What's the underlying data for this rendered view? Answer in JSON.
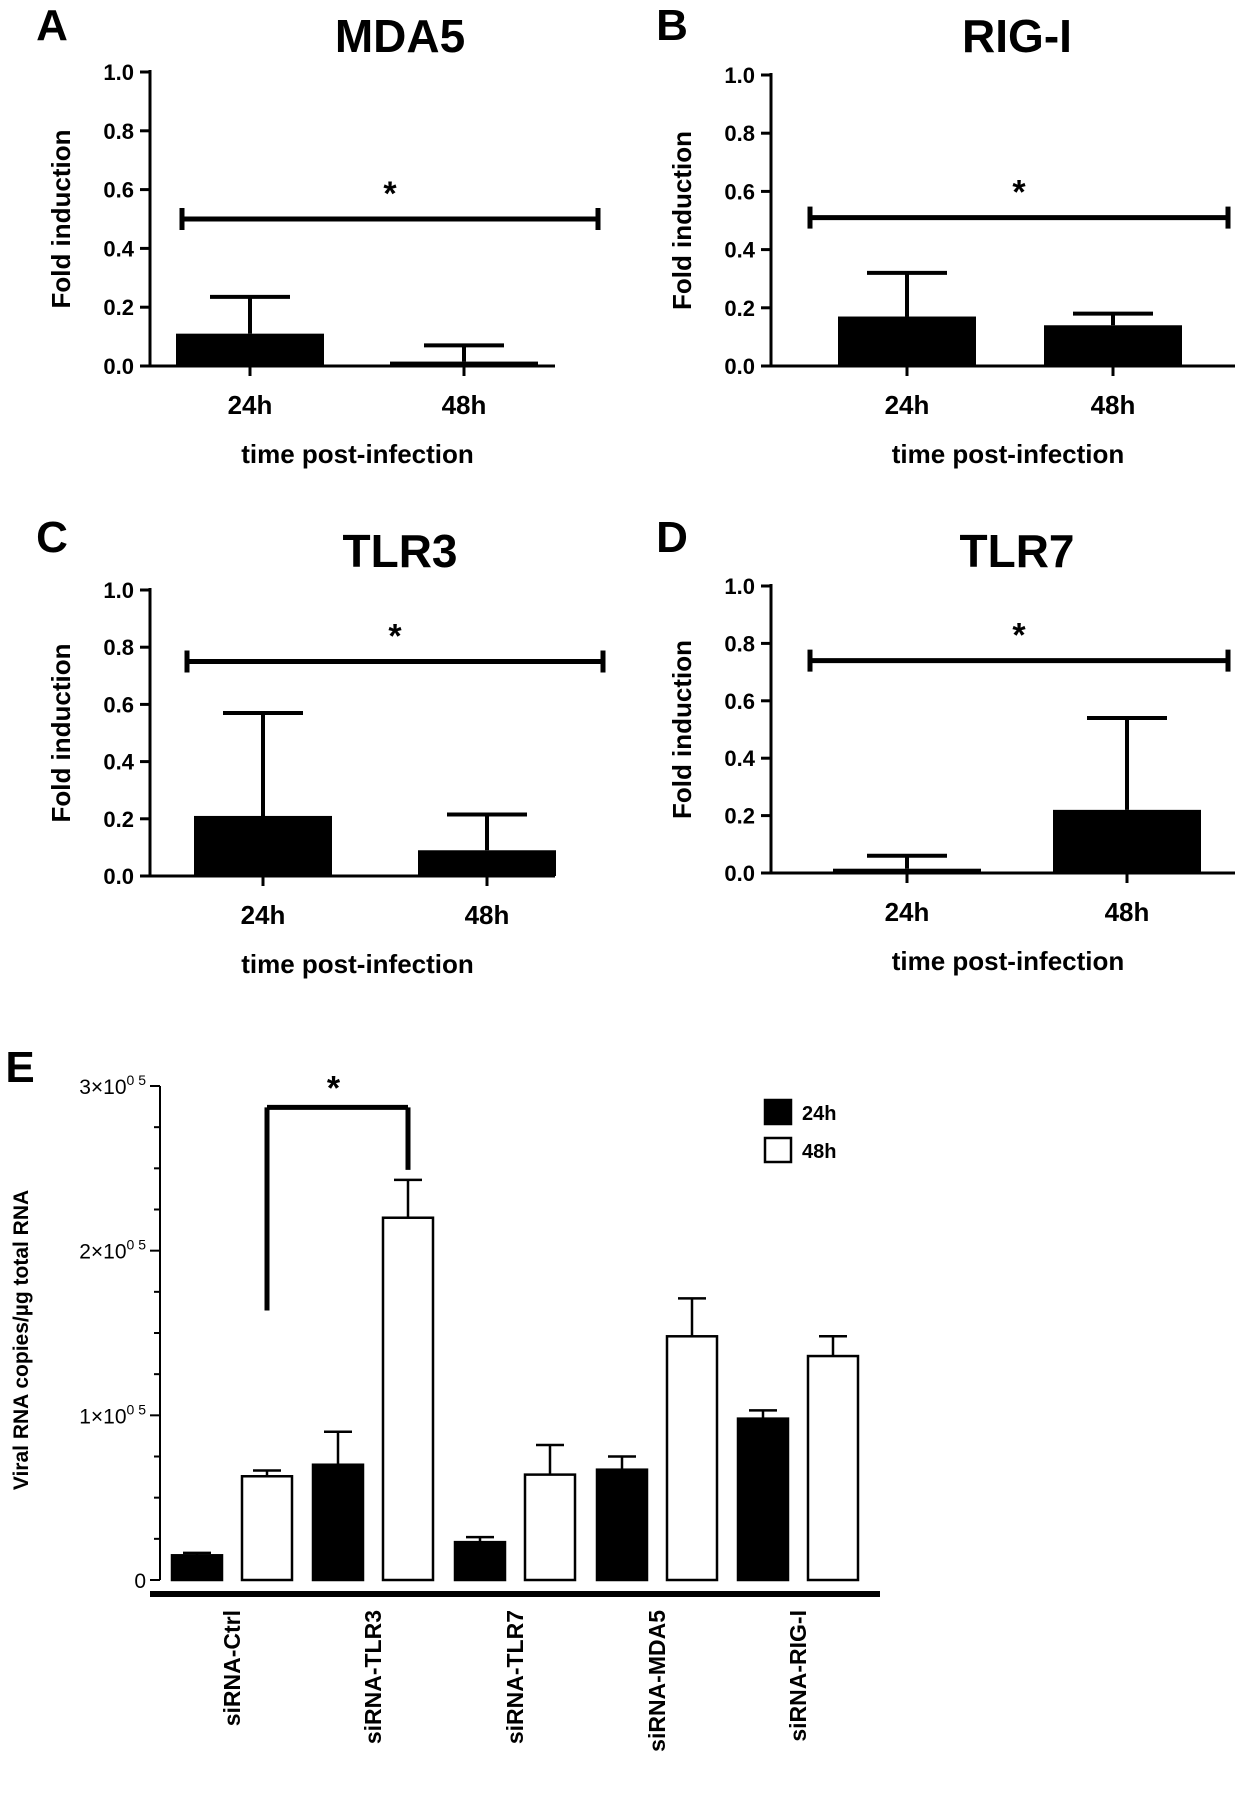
{
  "chart_data": [
    {
      "panel": "A",
      "type": "bar",
      "title": "MDA5",
      "xlabel": "time post-infection",
      "ylabel": "Fold induction",
      "categories": [
        "24h",
        "48h"
      ],
      "values": [
        0.11,
        0.015
      ],
      "errors": [
        0.125,
        0.055
      ],
      "ylim": [
        0,
        1.0
      ],
      "yticks": [
        "0.0",
        "0.2",
        "0.4",
        "0.6",
        "0.8",
        "1.0"
      ],
      "significance": {
        "label": "*",
        "y": 0.5
      },
      "bar_color": "#000000"
    },
    {
      "panel": "B",
      "type": "bar",
      "title": "RIG-I",
      "xlabel": "time post-infection",
      "ylabel": "Fold induction",
      "categories": [
        "24h",
        "48h"
      ],
      "values": [
        0.17,
        0.14
      ],
      "errors": [
        0.15,
        0.04
      ],
      "ylim": [
        0,
        1.0
      ],
      "yticks": [
        "0.0",
        "0.2",
        "0.4",
        "0.6",
        "0.8",
        "1.0"
      ],
      "significance": {
        "label": "*",
        "y": 0.51
      },
      "bar_color": "#000000"
    },
    {
      "panel": "C",
      "type": "bar",
      "title": "TLR3",
      "xlabel": "time post-infection",
      "ylabel": "Fold induction",
      "categories": [
        "24h",
        "48h"
      ],
      "values": [
        0.21,
        0.09
      ],
      "errors": [
        0.36,
        0.125
      ],
      "ylim": [
        0,
        1.0
      ],
      "yticks": [
        "0.0",
        "0.2",
        "0.4",
        "0.6",
        "0.8",
        "1.0"
      ],
      "significance": {
        "label": "*",
        "y": 0.75
      },
      "bar_color": "#000000"
    },
    {
      "panel": "D",
      "type": "bar",
      "title": "TLR7",
      "xlabel": "time post-infection",
      "ylabel": "Fold induction",
      "categories": [
        "24h",
        "48h"
      ],
      "values": [
        0.015,
        0.22
      ],
      "errors": [
        0.045,
        0.32
      ],
      "ylim": [
        0,
        1.0
      ],
      "yticks": [
        "0.0",
        "0.2",
        "0.4",
        "0.6",
        "0.8",
        "1.0"
      ],
      "significance": {
        "label": "*",
        "y": 0.74
      },
      "bar_color": "#000000"
    },
    {
      "panel": "E",
      "type": "bar",
      "title": "",
      "xlabel": "",
      "ylabel": "Viral RNA copies/µg total RNA",
      "categories": [
        "siRNA-Ctrl",
        "siRNA-TLR3",
        "siRNA-TLR7",
        "siRNA-MDA5",
        "siRNA-RIG-I"
      ],
      "series": [
        {
          "name": "24h",
          "values": [
            15000,
            70000,
            23000,
            67000,
            98000
          ],
          "errors": [
            1500,
            20000,
            3000,
            8000,
            5000
          ],
          "fill": "#000000"
        },
        {
          "name": "48h",
          "values": [
            63000,
            220000,
            64000,
            148000,
            136000
          ],
          "errors": [
            3500,
            23000,
            18000,
            23000,
            12000
          ],
          "fill": "#ffffff"
        }
      ],
      "ylim": [
        0,
        300000
      ],
      "yticks": [
        {
          "value": 0,
          "base": "0",
          "exp": ""
        },
        {
          "value": 100000,
          "base": "1×10",
          "exp": "0 5"
        },
        {
          "value": 200000,
          "base": "2×10",
          "exp": "0 5"
        },
        {
          "value": 300000,
          "base": "3×10",
          "exp": "0 5"
        }
      ],
      "legend": "top-right",
      "significance": {
        "label": "*",
        "from": "siRNA-Ctrl 48h",
        "to": "siRNA-TLR3 48h",
        "y": 287000
      }
    }
  ]
}
